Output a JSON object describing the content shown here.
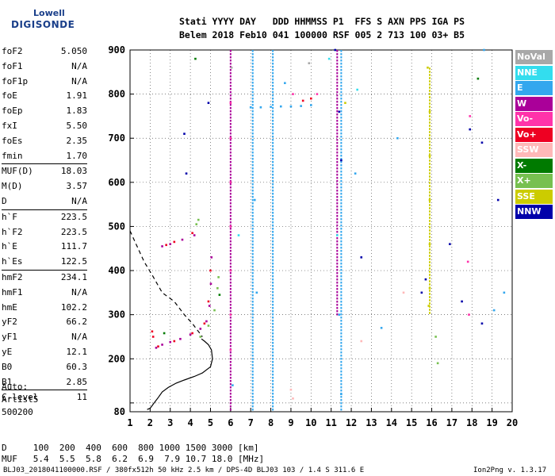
{
  "logo": {
    "line1": "Lowell",
    "line2": "DIGISONDE"
  },
  "header": {
    "line1": "Stati YYYY DAY   DDD HHMMSS P1  FFS S AXN PPS IGA PS",
    "line2": "Belem 2018 Feb10 041 100000 RSF 005 2 713 100 03+ B5"
  },
  "params": [
    [
      {
        "label": "foF2",
        "value": "5.050"
      },
      {
        "label": "foF1",
        "value": "N/A"
      },
      {
        "label": "foF1p",
        "value": "N/A"
      },
      {
        "label": "foE",
        "value": "1.91"
      },
      {
        "label": "foEp",
        "value": "1.83"
      },
      {
        "label": "fxI",
        "value": "5.50"
      },
      {
        "label": "foEs",
        "value": "2.35"
      },
      {
        "label": "fmin",
        "value": "1.70"
      }
    ],
    [
      {
        "label": "MUF(D)",
        "value": "18.03"
      },
      {
        "label": "M(D)",
        "value": "3.57"
      },
      {
        "label": "D",
        "value": "N/A"
      }
    ],
    [
      {
        "label": "h`F",
        "value": "223.5"
      },
      {
        "label": "h`F2",
        "value": "223.5"
      },
      {
        "label": "h`E",
        "value": "111.7"
      },
      {
        "label": "h`Es",
        "value": "122.5"
      }
    ],
    [
      {
        "label": "hmF2",
        "value": "234.1"
      },
      {
        "label": "hmF1",
        "value": "N/A"
      },
      {
        "label": "hmE",
        "value": "102.2"
      },
      {
        "label": "yF2",
        "value": "66.2"
      },
      {
        "label": "yF1",
        "value": "N/A"
      },
      {
        "label": "yE",
        "value": "12.1"
      },
      {
        "label": "B0",
        "value": "60.3"
      },
      {
        "label": "B1",
        "value": "2.85"
      }
    ],
    [
      {
        "label": "C-level",
        "value": "11"
      }
    ]
  ],
  "auto": {
    "l1": "Auto:",
    "l2": "Artist5",
    "l3": "500200"
  },
  "legend": [
    {
      "label": "NoVal",
      "color": "#a8a8a8"
    },
    {
      "label": "NNE",
      "color": "#33ddee"
    },
    {
      "label": "E",
      "color": "#33a7ee"
    },
    {
      "label": "W",
      "color": "#aa0099"
    },
    {
      "label": "Vo-",
      "color": "#ff33aa"
    },
    {
      "label": "Vo+",
      "color": "#ee0022"
    },
    {
      "label": "SSW",
      "color": "#ffb8b8"
    },
    {
      "label": "X-",
      "color": "#007a00"
    },
    {
      "label": "X+",
      "color": "#77c050"
    },
    {
      "label": "SSE",
      "color": "#cccc00"
    },
    {
      "label": "NNW",
      "color": "#0000aa"
    }
  ],
  "muf_table": {
    "line1": "D     100  200  400  600  800 1000 1500 3000 [km]",
    "line2": "MUF   5.4  5.5  5.8  6.2  6.9  7.9 10.7 18.0 [MHz]"
  },
  "footer": {
    "left": "BLJ03_2018041100000.RSF / 380fx512h 50 kHz 2.5 km / DPS-4D BLJ03 103 / 1.4 S 311.6 E",
    "right": "Ion2Png v. 1.3.17"
  },
  "chart_data": {
    "type": "scatter",
    "xlim": [
      1,
      20
    ],
    "ylim": [
      80,
      900
    ],
    "xticks": [
      1,
      2,
      3,
      4,
      5,
      6,
      7,
      8,
      9,
      10,
      11,
      12,
      13,
      14,
      15,
      16,
      17,
      18,
      19,
      20
    ],
    "yticks": [
      80,
      100,
      200,
      300,
      400,
      500,
      600,
      700,
      800,
      900
    ],
    "ytick_labels": [
      "80",
      "",
      "200",
      "300",
      "400",
      "500",
      "600",
      "700",
      "800",
      "900"
    ],
    "grid": true,
    "series": [
      {
        "legend": "W",
        "color": "#aa0099",
        "points": [
          [
            2.3,
            225
          ],
          [
            2.6,
            232
          ],
          [
            3.0,
            238
          ],
          [
            3.5,
            245
          ],
          [
            4.0,
            255
          ],
          [
            4.5,
            268
          ],
          [
            4.8,
            285
          ],
          [
            4.95,
            320
          ],
          [
            5.02,
            370
          ],
          [
            5.05,
            430
          ],
          [
            4.2,
            480
          ],
          [
            3.6,
            470
          ],
          [
            3.0,
            460
          ],
          [
            2.6,
            455
          ]
        ]
      },
      {
        "legend": "Vo+",
        "color": "#ee0022",
        "points": [
          [
            2.4,
            228
          ],
          [
            3.2,
            240
          ],
          [
            4.1,
            258
          ],
          [
            4.7,
            280
          ],
          [
            4.9,
            330
          ],
          [
            5.0,
            400
          ],
          [
            4.1,
            485
          ],
          [
            3.2,
            465
          ],
          [
            2.8,
            458
          ],
          [
            9.6,
            785
          ],
          [
            10.0,
            790
          ],
          [
            2.1,
            262
          ],
          [
            2.15,
            250
          ]
        ]
      },
      {
        "legend": "X+",
        "color": "#77c050",
        "points": [
          [
            4.5,
            250
          ],
          [
            4.9,
            275
          ],
          [
            5.2,
            310
          ],
          [
            5.35,
            360
          ],
          [
            5.4,
            385
          ],
          [
            4.3,
            505
          ],
          [
            4.4,
            515
          ],
          [
            16.2,
            250
          ],
          [
            16.3,
            190
          ]
        ]
      },
      {
        "legend": "X-",
        "color": "#007a00",
        "points": [
          [
            5.45,
            345
          ],
          [
            4.25,
            880
          ],
          [
            2.7,
            258
          ],
          [
            18.3,
            835
          ]
        ]
      },
      {
        "legend": "E",
        "color": "#33a7ee",
        "points": [
          [
            7.0,
            770
          ],
          [
            7.5,
            770
          ],
          [
            8.0,
            771
          ],
          [
            8.5,
            772
          ],
          [
            9.0,
            772
          ],
          [
            9.5,
            773
          ],
          [
            10.0,
            775
          ],
          [
            8.7,
            825
          ],
          [
            7.2,
            560
          ],
          [
            7.3,
            350
          ],
          [
            6.1,
            140
          ],
          [
            11.4,
            300
          ],
          [
            11.5,
            120
          ],
          [
            12.2,
            620
          ],
          [
            13.5,
            270
          ],
          [
            14.3,
            700
          ],
          [
            19.1,
            310
          ],
          [
            19.6,
            350
          ],
          [
            18.6,
            900
          ]
        ]
      },
      {
        "legend": "NNE",
        "color": "#33ddee",
        "points": [
          [
            6.4,
            480
          ],
          [
            10.9,
            880
          ],
          [
            12.3,
            810
          ],
          [
            11.3,
            480
          ]
        ]
      },
      {
        "legend": "SSE",
        "color": "#cccc00",
        "points": [
          [
            15.8,
            860
          ],
          [
            15.9,
            760
          ],
          [
            15.9,
            660
          ],
          [
            15.9,
            560
          ],
          [
            15.9,
            460
          ],
          [
            15.9,
            360
          ],
          [
            15.85,
            320
          ],
          [
            11.7,
            780
          ]
        ]
      },
      {
        "legend": "NNW",
        "color": "#0000aa",
        "points": [
          [
            11.4,
            760
          ],
          [
            11.5,
            650
          ],
          [
            12.5,
            430
          ],
          [
            15.5,
            350
          ],
          [
            15.7,
            380
          ],
          [
            17.5,
            330
          ],
          [
            18.5,
            280
          ],
          [
            18.5,
            690
          ],
          [
            19.3,
            560
          ],
          [
            3.7,
            710
          ],
          [
            3.8,
            620
          ],
          [
            4.9,
            780
          ],
          [
            11.2,
            900
          ],
          [
            16.9,
            460
          ],
          [
            17.9,
            720
          ]
        ]
      },
      {
        "legend": "Vo-",
        "color": "#ff33aa",
        "points": [
          [
            6.0,
            780
          ],
          [
            6.0,
            700
          ],
          [
            6.0,
            600
          ],
          [
            6.0,
            500
          ],
          [
            6.0,
            400
          ],
          [
            6.0,
            300
          ],
          [
            6.0,
            220
          ],
          [
            9.1,
            800
          ],
          [
            10.3,
            800
          ],
          [
            17.9,
            750
          ],
          [
            17.8,
            420
          ],
          [
            17.85,
            300
          ]
        ]
      },
      {
        "legend": "SSW",
        "color": "#ffb8b8",
        "points": [
          [
            9.0,
            130
          ],
          [
            9.1,
            110
          ],
          [
            12.5,
            240
          ],
          [
            14.6,
            350
          ]
        ]
      },
      {
        "legend": "NoVal",
        "color": "#a8a8a8",
        "points": [
          [
            6.05,
            860
          ],
          [
            9.9,
            870
          ]
        ]
      }
    ],
    "vertical_streaks": [
      {
        "x": 6.0,
        "color": "#aa0099",
        "y": [
          80,
          900
        ]
      },
      {
        "x": 7.1,
        "color": "#33a7ee",
        "y": [
          80,
          900
        ]
      },
      {
        "x": 8.1,
        "color": "#33a7ee",
        "y": [
          80,
          900
        ]
      },
      {
        "x": 11.5,
        "color": "#33a7ee",
        "y": [
          80,
          900
        ]
      },
      {
        "x": 11.3,
        "color": "#aa0099",
        "y": [
          300,
          900
        ]
      },
      {
        "x": 15.9,
        "color": "#cccc00",
        "y": [
          300,
          860
        ]
      }
    ],
    "profile_solid": [
      [
        1.85,
        85
      ],
      [
        2.0,
        88
      ],
      [
        2.2,
        100
      ],
      [
        2.4,
        112
      ],
      [
        2.6,
        125
      ],
      [
        2.9,
        135
      ],
      [
        3.3,
        145
      ],
      [
        3.7,
        152
      ],
      [
        4.2,
        160
      ],
      [
        4.6,
        168
      ],
      [
        5.0,
        182
      ],
      [
        5.1,
        200
      ],
      [
        5.05,
        220
      ],
      [
        4.9,
        232
      ],
      [
        4.7,
        240
      ],
      [
        4.55,
        245
      ]
    ],
    "profile_dashed": [
      [
        1.0,
        490
      ],
      [
        1.3,
        460
      ],
      [
        1.7,
        420
      ],
      [
        2.1,
        390
      ],
      [
        2.6,
        350
      ],
      [
        3.2,
        330
      ],
      [
        3.7,
        300
      ],
      [
        4.1,
        280
      ],
      [
        4.6,
        250
      ]
    ]
  }
}
